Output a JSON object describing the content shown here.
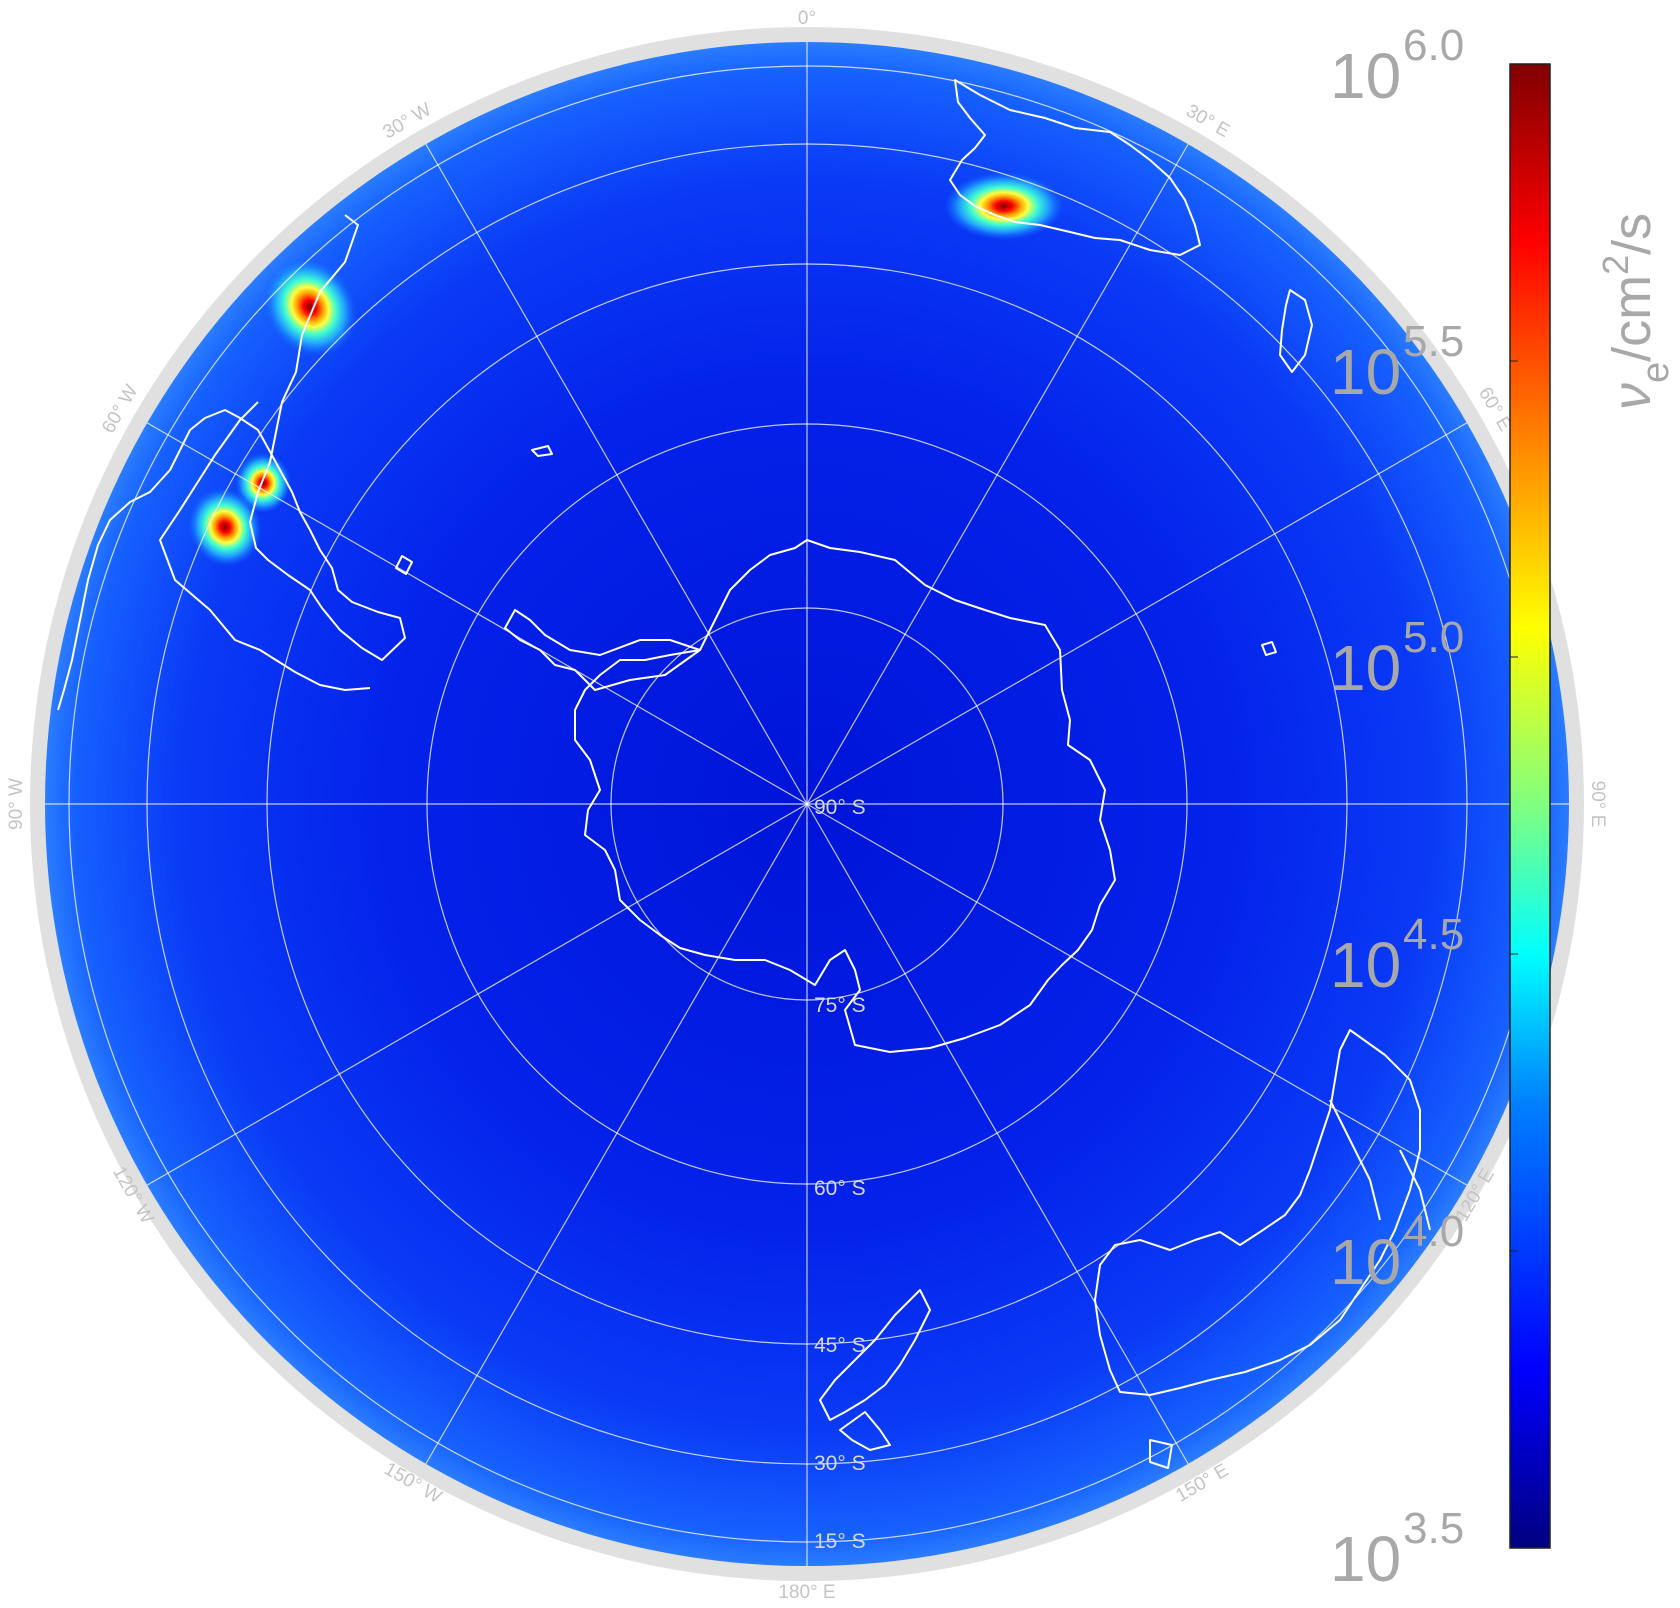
{
  "map": {
    "projection": "orthographic (south polar)",
    "center_label": "90° S",
    "latitude_labels": [
      "75° S",
      "60° S",
      "45° S",
      "30° S",
      "15° S"
    ],
    "longitude_labels": [
      "0°",
      "30° E",
      "60° E",
      "90° E",
      "120° E",
      "150° E",
      "180° E",
      "150° W",
      "120° W",
      "90° W",
      "60° W",
      "30° W"
    ],
    "colors": {
      "background_field": "#0a2cf0",
      "limb_field": "#1a5cff",
      "rim": "#dcdcdc",
      "coastline": "#ffffff",
      "graticule": "#ffffff"
    },
    "hotspots": [
      {
        "name": "hotspot-southern-africa",
        "icon": "red-hotspot"
      },
      {
        "name": "hotspot-south-america-north",
        "icon": "red-hotspot"
      },
      {
        "name": "hotspot-south-america-central",
        "icon": "red-hotspot"
      },
      {
        "name": "hotspot-south-america-south",
        "icon": "red-hotspot"
      }
    ]
  },
  "colorbar": {
    "title_symbol": "ν",
    "title_subscript": "e",
    "title_unit": "/cm",
    "title_unit_exp": "2",
    "title_unit_tail": "/s",
    "scale": "log",
    "range_exponent": [
      3.5,
      6.0
    ],
    "ticks": [
      {
        "base": "10",
        "exp": "6.0"
      },
      {
        "base": "10",
        "exp": "5.5"
      },
      {
        "base": "10",
        "exp": "5.0"
      },
      {
        "base": "10",
        "exp": "4.5"
      },
      {
        "base": "10",
        "exp": "4.0"
      },
      {
        "base": "10",
        "exp": "3.5"
      }
    ],
    "colormap": [
      "#000080",
      "#0000ff",
      "#0080ff",
      "#00ffff",
      "#80ff80",
      "#ffff00",
      "#ff8000",
      "#ff0000",
      "#800000"
    ]
  }
}
